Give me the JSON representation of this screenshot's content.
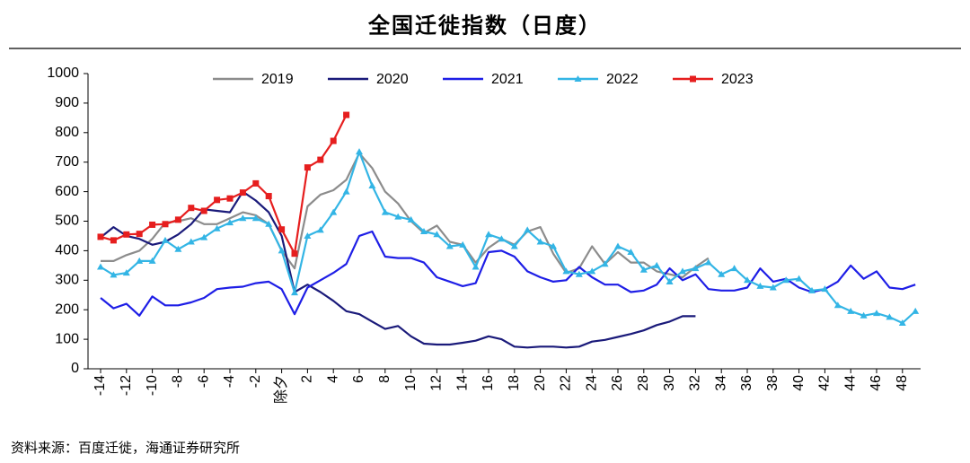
{
  "chart_data": {
    "type": "line",
    "title": "全国迁徙指数（日度）",
    "source": "资料来源：百度迁徙，海通证券研究所",
    "categories": [
      "-14",
      null,
      "-12",
      null,
      "-10",
      null,
      "-8",
      null,
      "-6",
      null,
      "-4",
      null,
      "-2",
      null,
      "除夕",
      null,
      "2",
      null,
      "4",
      null,
      "6",
      null,
      "8",
      null,
      "10",
      null,
      "12",
      null,
      "14",
      null,
      "16",
      null,
      "18",
      null,
      "20",
      null,
      "22",
      null,
      "24",
      null,
      "26",
      null,
      "28",
      null,
      "30",
      null,
      "32",
      null,
      "34",
      null,
      "36",
      null,
      "38",
      null,
      "40",
      null,
      "42",
      null,
      "44",
      null,
      "46",
      null,
      "48",
      null
    ],
    "ylim": [
      0,
      1000
    ],
    "yticks": [
      0,
      100,
      200,
      300,
      400,
      500,
      600,
      700,
      800,
      900,
      1000
    ],
    "grid": false,
    "legend": "top",
    "series": [
      {
        "name": "2019",
        "color": "#8c8c8c",
        "marker": "none",
        "values": [
          365,
          365,
          385,
          400,
          440,
          495,
          500,
          510,
          490,
          490,
          510,
          530,
          520,
          490,
          400,
          340,
          550,
          590,
          605,
          640,
          730,
          680,
          600,
          560,
          500,
          460,
          485,
          430,
          420,
          360,
          410,
          440,
          420,
          465,
          480,
          390,
          325,
          340,
          415,
          355,
          395,
          360,
          360,
          330,
          320,
          310,
          345,
          375,
          null,
          null,
          null,
          null,
          null,
          null,
          null,
          null,
          null,
          null,
          null,
          null,
          null,
          null,
          null,
          null
        ]
      },
      {
        "name": "2020",
        "color": "#1a1a7a",
        "marker": "none",
        "values": [
          445,
          480,
          450,
          440,
          420,
          430,
          455,
          490,
          540,
          535,
          530,
          600,
          570,
          530,
          450,
          260,
          285,
          260,
          230,
          195,
          185,
          160,
          135,
          145,
          110,
          85,
          82,
          82,
          88,
          95,
          110,
          100,
          75,
          72,
          75,
          75,
          72,
          75,
          92,
          98,
          108,
          118,
          130,
          148,
          160,
          178,
          178,
          null,
          null,
          null,
          null,
          null,
          null,
          null,
          null,
          null,
          null,
          null,
          null,
          null,
          null,
          null,
          null,
          null
        ]
      },
      {
        "name": "2021",
        "color": "#1e1ee6",
        "marker": "none",
        "values": [
          240,
          205,
          220,
          180,
          245,
          215,
          215,
          225,
          240,
          270,
          275,
          278,
          290,
          295,
          270,
          185,
          275,
          300,
          325,
          355,
          450,
          465,
          380,
          375,
          375,
          360,
          310,
          295,
          280,
          290,
          395,
          400,
          380,
          330,
          310,
          295,
          300,
          345,
          310,
          285,
          285,
          260,
          265,
          285,
          340,
          300,
          320,
          270,
          265,
          265,
          275,
          340,
          295,
          305,
          275,
          260,
          270,
          295,
          350,
          305,
          330,
          275,
          270,
          285
        ]
      },
      {
        "name": "2022",
        "color": "#33b5e5",
        "marker": "triangle",
        "values": [
          345,
          318,
          325,
          365,
          365,
          435,
          405,
          430,
          445,
          475,
          495,
          510,
          510,
          490,
          400,
          258,
          450,
          470,
          530,
          600,
          735,
          620,
          530,
          515,
          505,
          465,
          455,
          415,
          420,
          345,
          455,
          440,
          415,
          470,
          430,
          415,
          330,
          320,
          330,
          355,
          415,
          395,
          335,
          350,
          295,
          330,
          340,
          360,
          320,
          340,
          300,
          280,
          275,
          300,
          305,
          265,
          270,
          215,
          195,
          180,
          188,
          175,
          155,
          195
        ]
      },
      {
        "name": "2023",
        "color": "#e61e1e",
        "marker": "square",
        "values": [
          447,
          435,
          455,
          457,
          488,
          490,
          505,
          545,
          535,
          572,
          577,
          597,
          628,
          585,
          472,
          390,
          682,
          708,
          772,
          860,
          null,
          null,
          null,
          null,
          null,
          null,
          null,
          null,
          null,
          null,
          null,
          null,
          null,
          null,
          null,
          null,
          null,
          null,
          null,
          null,
          null,
          null,
          null,
          null,
          null,
          null,
          null,
          null,
          null,
          null,
          null,
          null,
          null,
          null,
          null,
          null,
          null,
          null,
          null,
          null,
          null,
          null,
          null,
          null
        ]
      }
    ]
  }
}
